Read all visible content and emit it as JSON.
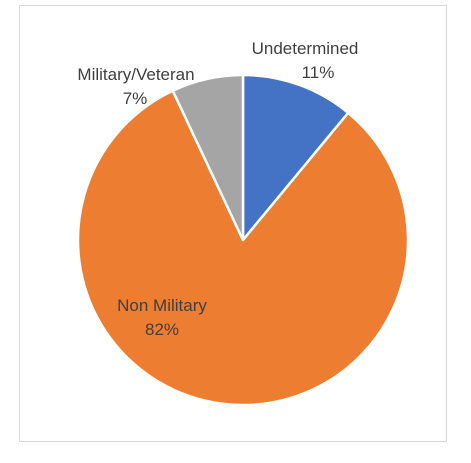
{
  "chart_data": {
    "type": "pie",
    "slices": [
      {
        "label": "Undetermined",
        "pct_label": "11%",
        "value": 11,
        "color": "#4472C4"
      },
      {
        "label": "Non Military",
        "pct_label": "82%",
        "value": 82,
        "color": "#ED7D31"
      },
      {
        "label": "Military/Veteran",
        "pct_label": "7%",
        "value": 7,
        "color": "#A5A5A5"
      }
    ],
    "start_angle_deg": 0,
    "direction": "clockwise",
    "title": "",
    "legend": "none"
  }
}
